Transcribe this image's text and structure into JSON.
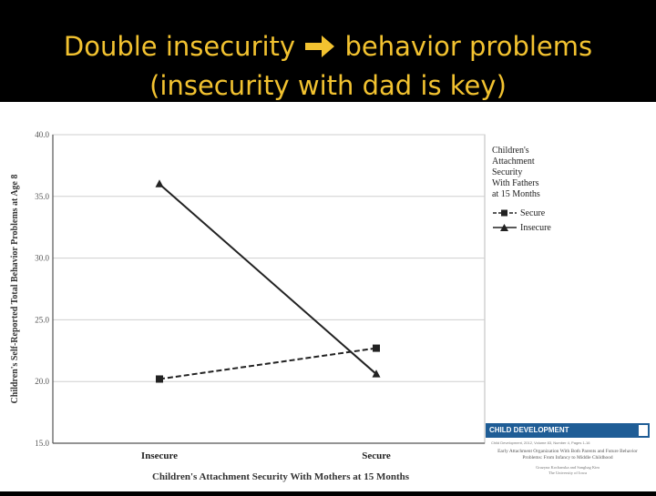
{
  "slide": {
    "title_part1": "Double insecurity",
    "arrow_icon": "right-arrow-icon",
    "title_part2": "behavior problems",
    "title_line2": "(insecurity with dad is key)",
    "title_color": "#f2c230"
  },
  "chart_data": {
    "type": "line",
    "categories": [
      "Insecure",
      "Secure"
    ],
    "series": [
      {
        "name": "Secure",
        "values": [
          20.2,
          22.7
        ],
        "marker": "square",
        "dash": "dashed"
      },
      {
        "name": "Insecure",
        "values": [
          36.0,
          20.6
        ],
        "marker": "triangle",
        "dash": "solid"
      }
    ],
    "xlabel": "Children's Attachment Security With Mothers at 15 Months",
    "ylabel": "Children's Self-Reported Total Behavior Problems at Age 8",
    "ylim": [
      15,
      40
    ],
    "yticks": [
      "15.0",
      "20.0",
      "25.0",
      "30.0",
      "35.0",
      "40.0"
    ],
    "legend": {
      "title_lines": [
        "Children's",
        "Attachment",
        "Security",
        "With Fathers",
        "at 15 Months"
      ],
      "placement": "right"
    }
  },
  "journal": {
    "name": "CHILD DEVELOPMENT",
    "citation": "Child Development, 2012, Volume 83, Number 4, Pages 1-16",
    "title_lines": [
      "Early Attachment Organization With Both Parents and Future Behavior",
      "Problems: From Infancy to Middle Childhood"
    ],
    "author_lines": [
      "Grazyna Kochanska and Sanghag Kim",
      "The University of Iowa"
    ]
  }
}
